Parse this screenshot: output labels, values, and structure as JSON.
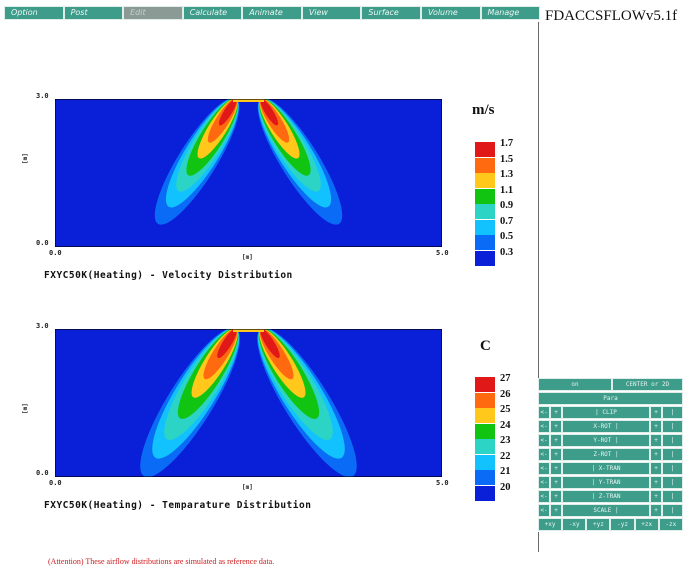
{
  "menu": [
    "Option",
    "Post",
    "Edit",
    "Calculate",
    "Animate",
    "View",
    "Surface",
    "Volume",
    "Manage"
  ],
  "active_menu_index": 2,
  "app_title": "FDACCSFLOWv5.1f",
  "plots": [
    {
      "caption": "FXYC50K(Heating) - Velocity Distribution",
      "y_top": "3.0",
      "y_bottom": "0.0",
      "x_left": "0.0",
      "x_right": "5.0",
      "y_unit": "[m]",
      "x_unit": "[m]"
    },
    {
      "caption": "FXYC50K(Heating) - Temparature Distribution",
      "y_top": "3.0",
      "y_bottom": "0.0",
      "x_left": "0.0",
      "x_right": "5.0",
      "y_unit": "[m]",
      "x_unit": "[m]"
    }
  ],
  "legends": [
    {
      "unit": "m/s",
      "levels": [
        "1.7",
        "1.5",
        "1.3",
        "1.1",
        "0.9",
        "0.7",
        "0.5",
        "0.3"
      ],
      "colors": [
        "#e01818",
        "#ff6a10",
        "#ffc81a",
        "#12c412",
        "#2bd4c4",
        "#11c2ff",
        "#0a6cf6",
        "#0a1fd8"
      ]
    },
    {
      "unit": "C",
      "levels": [
        "27",
        "26",
        "25",
        "24",
        "23",
        "22",
        "21",
        "20"
      ],
      "colors": [
        "#e01818",
        "#ff6a10",
        "#ffc81a",
        "#12c412",
        "#2bd4c4",
        "#11c2ff",
        "#0a6cf6",
        "#0a1fd8"
      ]
    }
  ],
  "controls": {
    "status_left": "on",
    "status_right": "CENTER or 2D",
    "para": "Para",
    "rows": [
      [
        "<-",
        "+",
        "| CLIP",
        "+",
        "|"
      ],
      [
        "<-",
        "+",
        "X-ROT |",
        "+",
        "|"
      ],
      [
        "<-",
        "+",
        "Y-ROT |",
        "+",
        "|"
      ],
      [
        "<-",
        "+",
        "Z-ROT |",
        "+",
        "|"
      ],
      [
        "<-",
        "+",
        "| X-TRAN",
        "+",
        "|"
      ],
      [
        "<-",
        "+",
        "| Y-TRAN",
        "+",
        "|"
      ],
      [
        "<-",
        "+",
        "| Z-TRAN",
        "+",
        "|"
      ],
      [
        "<-",
        "+",
        "SCALE |",
        "+",
        "|"
      ]
    ],
    "bottom": [
      "+xy",
      "-xy",
      "+yz",
      "-yz",
      "+zx",
      "-zx"
    ]
  },
  "footnote": "(Attention) These airflow distributions are simulated as reference data."
}
